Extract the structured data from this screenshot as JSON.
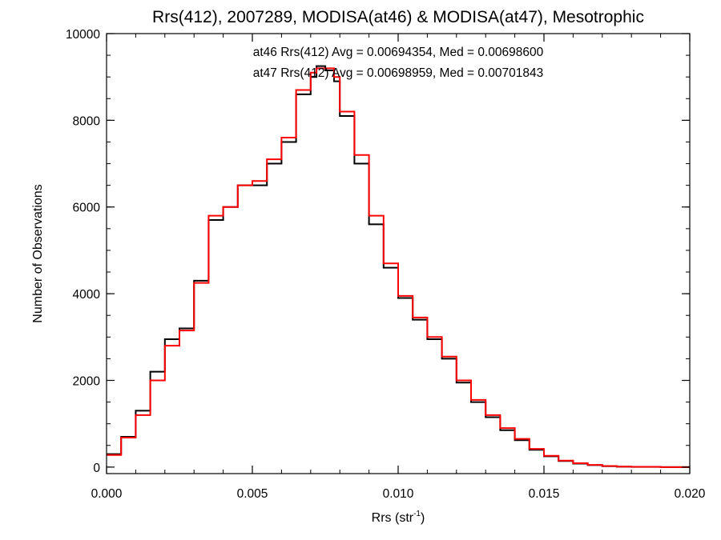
{
  "chart_data": {
    "type": "line",
    "title": "Rrs(412), 2007289, MODISA(at46) & MODISA(at47), Mesotrophic",
    "xlabel_main": "Rrs (str",
    "xlabel_sup": "-1",
    "xlabel_close": ")",
    "ylabel": "Number of Observations",
    "xlim": [
      0.0,
      0.02
    ],
    "ylim": [
      -150,
      10000
    ],
    "x_ticks": [
      0.0,
      0.005,
      0.01,
      0.015,
      0.02
    ],
    "x_tick_labels": [
      "0.000",
      "0.005",
      "0.010",
      "0.015",
      "0.020"
    ],
    "x_minor_step": 0.001,
    "y_ticks": [
      0,
      2000,
      4000,
      6000,
      8000,
      10000
    ],
    "y_tick_labels": [
      "0",
      "2000",
      "4000",
      "6000",
      "8000",
      "10000"
    ],
    "y_minor_step": 500,
    "grid": false,
    "step_plot": true,
    "annotations": [
      {
        "text": "at46 Rrs(412) Avg = 0.00694354, Med = 0.00698600",
        "color": "#000000"
      },
      {
        "text": "at47 Rrs(412) Avg = 0.00698959, Med = 0.00701843",
        "color": "#ff0000"
      }
    ],
    "x": [
      0.0,
      0.0005,
      0.001,
      0.0015,
      0.002,
      0.0025,
      0.003,
      0.0035,
      0.004,
      0.0045,
      0.005,
      0.0055,
      0.006,
      0.0065,
      0.007,
      0.0072,
      0.0075,
      0.0078,
      0.008,
      0.0085,
      0.009,
      0.0095,
      0.01,
      0.0105,
      0.011,
      0.0115,
      0.012,
      0.0125,
      0.013,
      0.0135,
      0.014,
      0.0145,
      0.015,
      0.0155,
      0.016,
      0.0165,
      0.017,
      0.0175,
      0.018,
      0.019,
      0.02
    ],
    "series": [
      {
        "name": "at46",
        "color": "#000000",
        "values": [
          300,
          700,
          1300,
          2200,
          2950,
          3200,
          4300,
          5700,
          6000,
          6500,
          6500,
          7000,
          7500,
          8600,
          9000,
          9250,
          9150,
          8900,
          8100,
          7000,
          5600,
          4600,
          3900,
          3400,
          2950,
          2500,
          1950,
          1500,
          1150,
          850,
          620,
          400,
          250,
          140,
          80,
          45,
          20,
          10,
          5,
          0,
          0
        ]
      },
      {
        "name": "at47",
        "color": "#ff0000",
        "values": [
          280,
          680,
          1200,
          2000,
          2800,
          3150,
          4250,
          5800,
          6000,
          6500,
          6600,
          7100,
          7600,
          8700,
          9100,
          9200,
          9200,
          9000,
          8200,
          7200,
          5800,
          4700,
          3950,
          3450,
          3000,
          2550,
          2000,
          1550,
          1200,
          900,
          650,
          420,
          260,
          150,
          90,
          50,
          25,
          12,
          6,
          0,
          0
        ]
      }
    ]
  }
}
